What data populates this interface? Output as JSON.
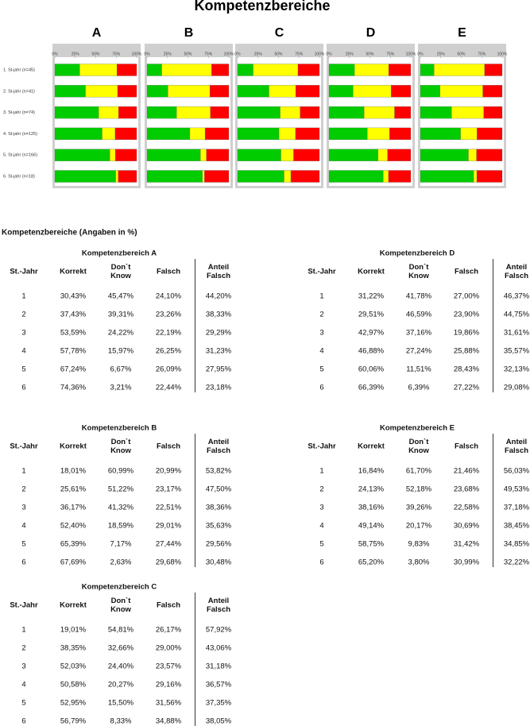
{
  "title": "Kompetenzbereiche",
  "chart_data": [
    {
      "type": "bar",
      "orientation": "horizontal",
      "stacked": true,
      "title": "A",
      "categories": [
        "1. St-jahr (n=45)",
        "2. St-jahr (n=41)",
        "3. St-jahr (n=74)",
        "4. St-jahr (n=125)",
        "5. St-jahr (n=166)",
        "6. St-jahr (n=18)"
      ],
      "xlim": [
        0,
        100
      ],
      "xticks": [
        {
          "value": 0,
          "label": "0%"
        },
        {
          "value": 25,
          "label": "25%"
        },
        {
          "value": 50,
          "label": "50%"
        },
        {
          "value": 75,
          "label": "75%"
        },
        {
          "value": 100,
          "label": "100%"
        }
      ],
      "series": [
        {
          "color": "#00cc00",
          "values": [
            30.43,
            37.43,
            53.59,
            57.78,
            67.24,
            74.36
          ]
        },
        {
          "color": "#ffff00",
          "values": [
            45.47,
            39.31,
            24.22,
            15.97,
            6.67,
            3.21
          ]
        },
        {
          "color": "#ff0000",
          "values": [
            24.1,
            23.26,
            22.19,
            26.25,
            26.09,
            22.44
          ]
        }
      ]
    },
    {
      "type": "bar",
      "orientation": "horizontal",
      "stacked": true,
      "title": "B",
      "categories": [
        null,
        null,
        null,
        null,
        null,
        null
      ],
      "xlim": [
        0,
        100
      ],
      "xticks": [
        {
          "value": 0,
          "label": "0%"
        },
        {
          "value": 25,
          "label": "25%"
        },
        {
          "value": 50,
          "label": "50%"
        },
        {
          "value": 75,
          "label": "75%"
        },
        {
          "value": 100,
          "label": "100%"
        }
      ],
      "series": [
        {
          "color": "#00cc00",
          "values": [
            18.01,
            25.61,
            36.17,
            52.4,
            65.39,
            67.69
          ]
        },
        {
          "color": "#ffff00",
          "values": [
            60.99,
            51.22,
            41.32,
            18.59,
            7.17,
            2.63
          ]
        },
        {
          "color": "#ff0000",
          "values": [
            20.99,
            23.17,
            22.51,
            29.01,
            27.44,
            29.68
          ]
        }
      ]
    },
    {
      "type": "bar",
      "orientation": "horizontal",
      "stacked": true,
      "title": "C",
      "categories": [
        null,
        null,
        null,
        null,
        null,
        null
      ],
      "xlim": [
        0,
        100
      ],
      "xticks": [
        {
          "value": 0,
          "label": "0%"
        },
        {
          "value": 25,
          "label": "25%"
        },
        {
          "value": 50,
          "label": "50%"
        },
        {
          "value": 75,
          "label": "75%"
        },
        {
          "value": 100,
          "label": "100%"
        }
      ],
      "series": [
        {
          "color": "#00cc00",
          "values": [
            19.01,
            38.35,
            52.03,
            50.58,
            52.95,
            56.79
          ]
        },
        {
          "color": "#ffff00",
          "values": [
            54.81,
            32.66,
            24.4,
            20.27,
            15.5,
            8.33
          ]
        },
        {
          "color": "#ff0000",
          "values": [
            26.17,
            29.0,
            23.57,
            29.16,
            31.56,
            34.88
          ]
        }
      ]
    },
    {
      "type": "bar",
      "orientation": "horizontal",
      "stacked": true,
      "title": "D",
      "categories": [
        null,
        null,
        null,
        null,
        null,
        null
      ],
      "xlim": [
        0,
        100
      ],
      "xticks": [
        {
          "value": 0,
          "label": "0%"
        },
        {
          "value": 25,
          "label": "25%"
        },
        {
          "value": 50,
          "label": "50%"
        },
        {
          "value": 75,
          "label": "75%"
        },
        {
          "value": 100,
          "label": "100%"
        }
      ],
      "series": [
        {
          "color": "#00cc00",
          "values": [
            31.22,
            29.51,
            42.97,
            46.88,
            60.06,
            66.39
          ]
        },
        {
          "color": "#ffff00",
          "values": [
            41.78,
            46.59,
            37.16,
            27.24,
            11.51,
            6.39
          ]
        },
        {
          "color": "#ff0000",
          "values": [
            27.0,
            23.9,
            19.86,
            25.88,
            28.43,
            27.22
          ]
        }
      ]
    },
    {
      "type": "bar",
      "orientation": "horizontal",
      "stacked": true,
      "title": "E",
      "categories": [
        null,
        null,
        null,
        null,
        null,
        null
      ],
      "xlim": [
        0,
        100
      ],
      "xticks": [
        {
          "value": 0,
          "label": "0%"
        },
        {
          "value": 25,
          "label": "25%"
        },
        {
          "value": 50,
          "label": "50%"
        },
        {
          "value": 75,
          "label": "75%"
        },
        {
          "value": 100,
          "label": "100%"
        }
      ],
      "series": [
        {
          "color": "#00cc00",
          "values": [
            16.84,
            24.13,
            38.16,
            49.14,
            58.75,
            65.2
          ]
        },
        {
          "color": "#ffff00",
          "values": [
            61.7,
            52.18,
            39.26,
            20.17,
            9.83,
            3.8
          ]
        },
        {
          "color": "#ff0000",
          "values": [
            21.46,
            23.68,
            22.58,
            30.69,
            31.42,
            30.99
          ]
        }
      ]
    }
  ],
  "tables_heading": "Kompetenzbereiche (Angaben in %)",
  "tables": [
    {
      "title": "Kompetenzbereich A",
      "columns": [
        "St.-Jahr",
        "Korrekt",
        "Don`t Know",
        "Falsch",
        "Anteil Falsch"
      ],
      "rows": [
        [
          "1",
          "30,43%",
          "45,47%",
          "24,10%",
          "44,20%"
        ],
        [
          "2",
          "37,43%",
          "39,31%",
          "23,26%",
          "38,33%"
        ],
        [
          "3",
          "53,59%",
          "24,22%",
          "22,19%",
          "29,29%"
        ],
        [
          "4",
          "57,78%",
          "15,97%",
          "26,25%",
          "31,23%"
        ],
        [
          "5",
          "67,24%",
          "6,67%",
          "26,09%",
          "27,95%"
        ],
        [
          "6",
          "74,36%",
          "3,21%",
          "22,44%",
          "23,18%"
        ]
      ]
    },
    {
      "title": "Kompetenzbereich B",
      "columns": [
        "St.-Jahr",
        "Korrekt",
        "Don`t Know",
        "Falsch",
        "Anteil Falsch"
      ],
      "rows": [
        [
          "1",
          "18,01%",
          "60,99%",
          "20,99%",
          "53,82%"
        ],
        [
          "2",
          "25,61%",
          "51,22%",
          "23,17%",
          "47,50%"
        ],
        [
          "3",
          "36,17%",
          "41,32%",
          "22,51%",
          "38,36%"
        ],
        [
          "4",
          "52,40%",
          "18,59%",
          "29,01%",
          "35,63%"
        ],
        [
          "5",
          "65,39%",
          "7,17%",
          "27,44%",
          "29,56%"
        ],
        [
          "6",
          "67,69%",
          "2,63%",
          "29,68%",
          "30,48%"
        ]
      ]
    },
    {
      "title": "Kompetenzbereich C",
      "columns": [
        "St.-Jahr",
        "Korrekt",
        "Don`t Know",
        "Falsch",
        "Anteil Falsch"
      ],
      "rows": [
        [
          "1",
          "19,01%",
          "54,81%",
          "26,17%",
          "57,92%"
        ],
        [
          "2",
          "38,35%",
          "32,66%",
          "29,00%",
          "43,06%"
        ],
        [
          "3",
          "52,03%",
          "24,40%",
          "23,57%",
          "31,18%"
        ],
        [
          "4",
          "50,58%",
          "20,27%",
          "29,16%",
          "36,57%"
        ],
        [
          "5",
          "52,95%",
          "15,50%",
          "31,56%",
          "37,35%"
        ],
        [
          "6",
          "56,79%",
          "8,33%",
          "34,88%",
          "38,05%"
        ]
      ]
    },
    {
      "title": "Kompetenzbereich D",
      "columns": [
        "St.-Jahr",
        "Korrekt",
        "Don`t Know",
        "Falsch",
        "Anteil Falsch"
      ],
      "rows": [
        [
          "1",
          "31,22%",
          "41,78%",
          "27,00%",
          "46,37%"
        ],
        [
          "2",
          "29,51%",
          "46,59%",
          "23,90%",
          "44,75%"
        ],
        [
          "3",
          "42,97%",
          "37,16%",
          "19,86%",
          "31,61%"
        ],
        [
          "4",
          "46,88%",
          "27,24%",
          "25,88%",
          "35,57%"
        ],
        [
          "5",
          "60,06%",
          "11,51%",
          "28,43%",
          "32,13%"
        ],
        [
          "6",
          "66,39%",
          "6,39%",
          "27,22%",
          "29,08%"
        ]
      ]
    },
    {
      "title": "Kompetenzbereich E",
      "columns": [
        "St.-Jahr",
        "Korrekt",
        "Don`t Know",
        "Falsch",
        "Anteil Falsch"
      ],
      "rows": [
        [
          "1",
          "16,84%",
          "61,70%",
          "21,46%",
          "56,03%"
        ],
        [
          "2",
          "24,13%",
          "52,18%",
          "23,68%",
          "49,53%"
        ],
        [
          "3",
          "38,16%",
          "39,26%",
          "22,58%",
          "37,18%"
        ],
        [
          "4",
          "49,14%",
          "20,17%",
          "30,69%",
          "38,45%"
        ],
        [
          "5",
          "58,75%",
          "9,83%",
          "31,42%",
          "34,85%"
        ],
        [
          "6",
          "65,20%",
          "3,80%",
          "30,99%",
          "32,22%"
        ]
      ]
    }
  ]
}
